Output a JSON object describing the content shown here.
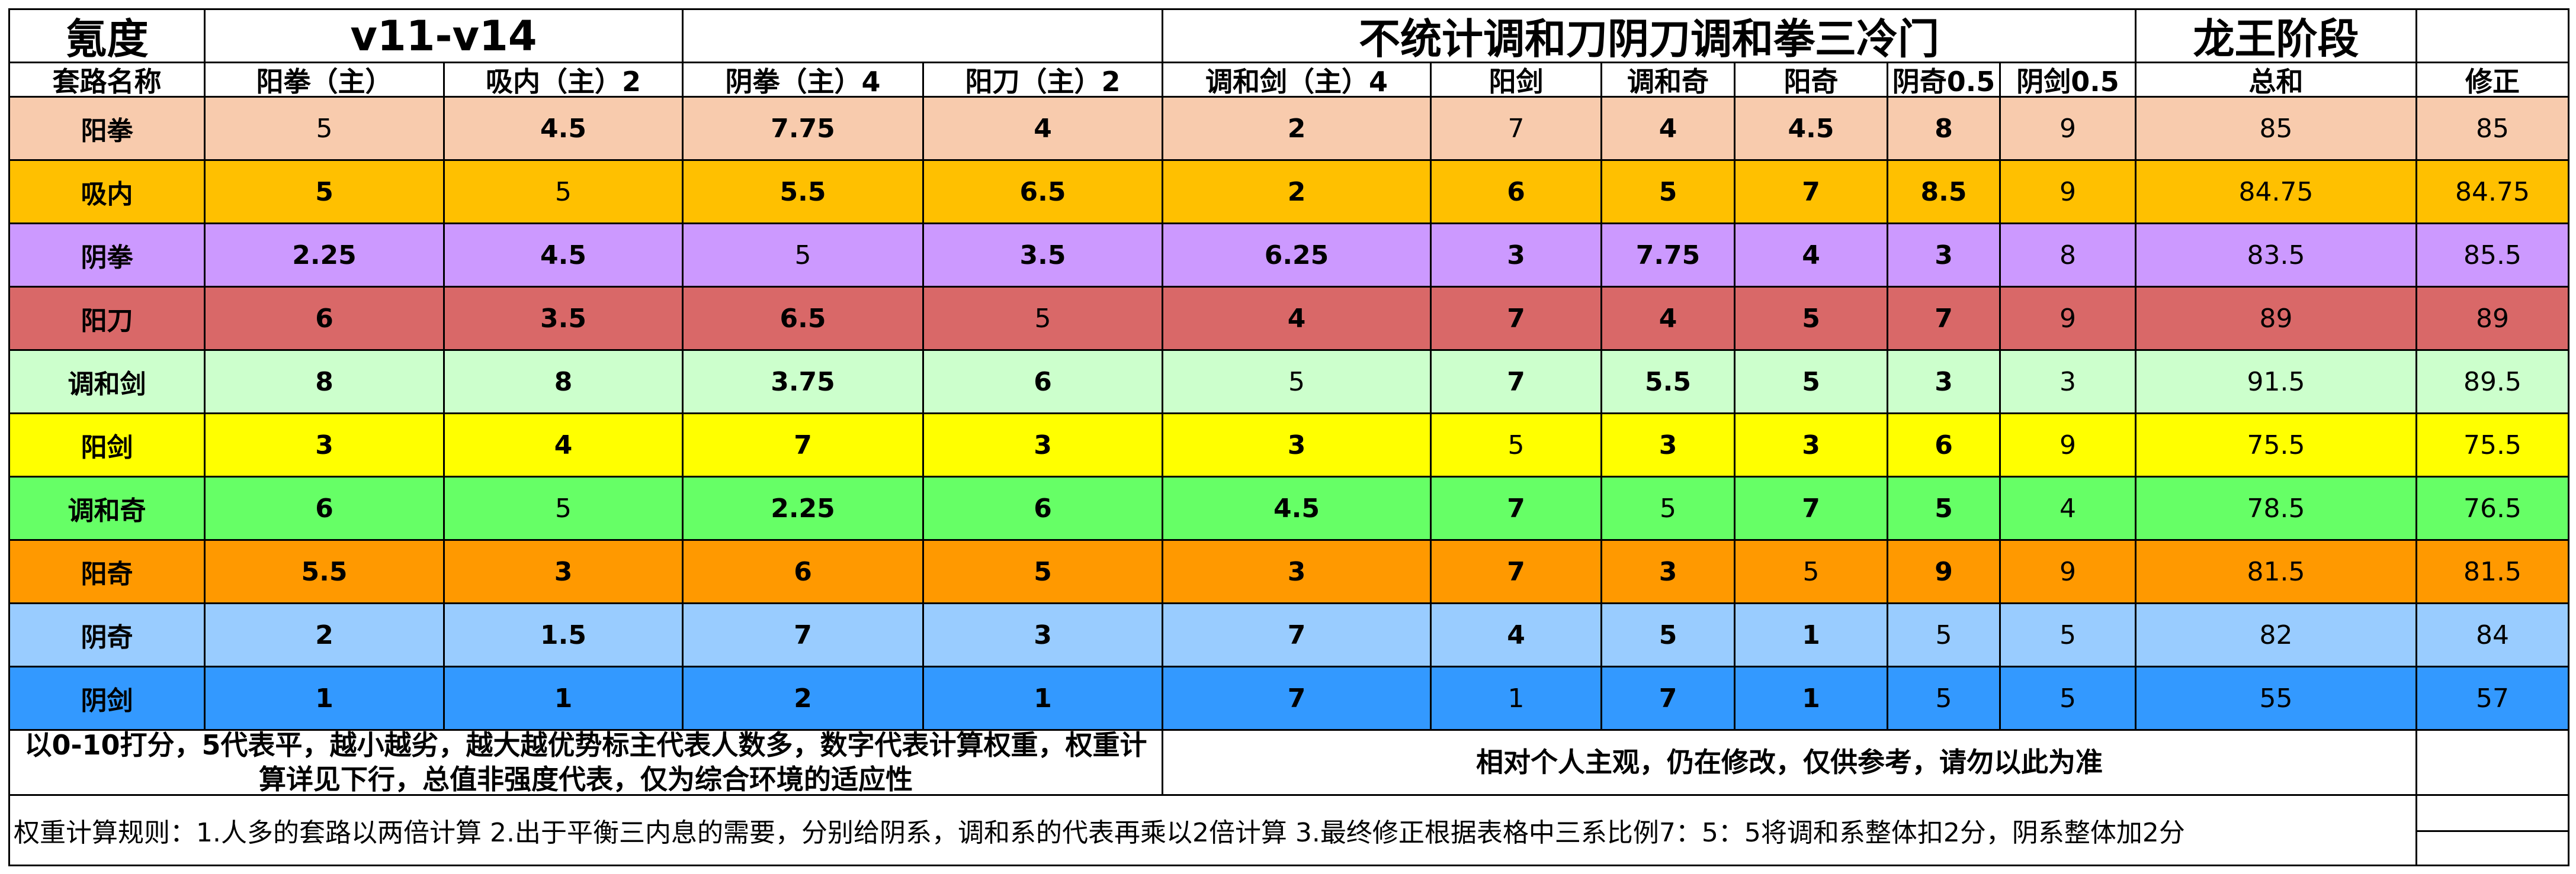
{
  "header1": {
    "title": "氪度",
    "version": "v11-v14",
    "note": "不统计调和刀阴刀调和拳三冷门",
    "stage": "龙王阶段"
  },
  "columns": [
    "套路名称",
    "阳拳（主）",
    "吸内（主）2",
    "阴拳（主）4",
    "阳刀（主）2",
    "调和剑（主）4",
    "阳剑",
    "调和奇",
    "阳奇",
    "阴奇0.5",
    "阴剑0.5",
    "总和",
    "修正"
  ],
  "rows": [
    {
      "name": "阳拳",
      "color": "#F8CBAD",
      "values": [
        "5",
        "4.5",
        "7.75",
        "4",
        "2",
        "7",
        "4",
        "4.5",
        "8",
        "9",
        "85",
        "85"
      ]
    },
    {
      "name": "吸内",
      "color": "#FFC000",
      "values": [
        "5",
        "5",
        "5.5",
        "6.5",
        "2",
        "6",
        "5",
        "7",
        "8.5",
        "9",
        "84.75",
        "84.75"
      ]
    },
    {
      "name": "阴拳",
      "color": "#CC99FF",
      "values": [
        "2.25",
        "4.5",
        "5",
        "3.5",
        "6.25",
        "3",
        "7.75",
        "4",
        "3",
        "8",
        "83.5",
        "85.5"
      ]
    },
    {
      "name": "阳刀",
      "color": "#D96868",
      "values": [
        "6",
        "3.5",
        "6.5",
        "5",
        "4",
        "7",
        "4",
        "5",
        "7",
        "9",
        "89",
        "89"
      ]
    },
    {
      "name": "调和剑",
      "color": "#CCFFCC",
      "values": [
        "8",
        "8",
        "3.75",
        "6",
        "5",
        "7",
        "5.5",
        "5",
        "3",
        "3",
        "91.5",
        "89.5"
      ]
    },
    {
      "name": "阳剑",
      "color": "#FFFF00",
      "values": [
        "3",
        "4",
        "7",
        "3",
        "3",
        "5",
        "3",
        "3",
        "6",
        "9",
        "75.5",
        "75.5"
      ]
    },
    {
      "name": "调和奇",
      "color": "#66FF66",
      "values": [
        "6",
        "5",
        "2.25",
        "6",
        "4.5",
        "7",
        "5",
        "7",
        "5",
        "4",
        "78.5",
        "76.5"
      ]
    },
    {
      "name": "阳奇",
      "color": "#FF9900",
      "values": [
        "5.5",
        "3",
        "6",
        "5",
        "3",
        "7",
        "3",
        "5",
        "9",
        "9",
        "81.5",
        "81.5"
      ]
    },
    {
      "name": "阴奇",
      "color": "#99CCFF",
      "values": [
        "2",
        "1.5",
        "7",
        "3",
        "7",
        "4",
        "5",
        "1",
        "5",
        "5",
        "82",
        "84"
      ]
    },
    {
      "name": "阴剑",
      "color": "#3399FF",
      "values": [
        "1",
        "1",
        "2",
        "1",
        "7",
        "1",
        "7",
        "1",
        "5",
        "5",
        "55",
        "57"
      ]
    }
  ],
  "notes": {
    "left": "以0-10打分，5代表平，越小越劣，越大越优势标主代表人数多，数字代表计算权重，权重计算详见下行，总值非强度代表，仅为综合环境的适应性",
    "right": "相对个人主观，仍在修改，仅供参考，请勿以此为准",
    "rules": "权重计算规则：1.人多的套路以两倍计算 2.出于平衡三内息的需要，分别给阴系，调和系的代表再乘以2倍计算 3.最终修正根据表格中三系比例7：5：5将调和系整体扣2分，阴系整体加2分"
  }
}
